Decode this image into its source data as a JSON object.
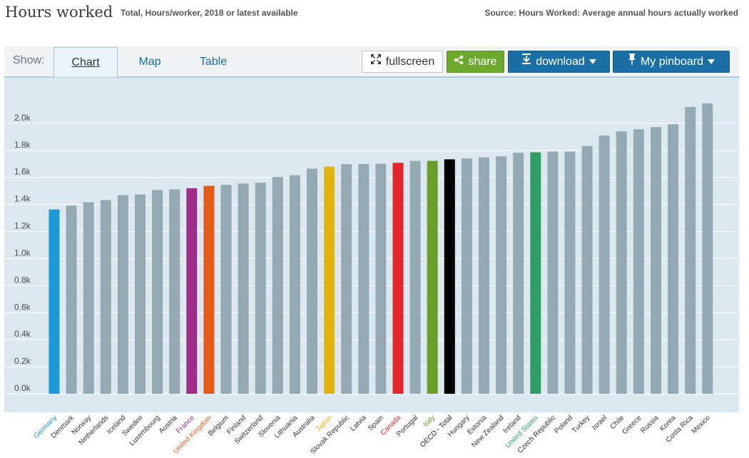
{
  "header": {
    "title": "Hours worked",
    "subtitle": "Total, Hours/worker, 2018 or latest available",
    "source": "Source: Hours Worked: Average annual hours actually worked"
  },
  "toolbar": {
    "show_label": "Show:",
    "tabs": [
      {
        "label": "Chart",
        "active": true
      },
      {
        "label": "Map",
        "active": false
      },
      {
        "label": "Table",
        "active": false
      }
    ],
    "fullscreen_label": "fullscreen",
    "share_label": "share",
    "download_label": "download",
    "pinboard_label": "My pinboard"
  },
  "colors": {
    "default_bar": "#95a9b5",
    "plot_background": "#dbe8ef",
    "accent_blue": "#1a6fa6",
    "share_green": "#6ea92f"
  },
  "icons": {
    "fullscreen": "expand-arrows-icon",
    "share": "share-icon",
    "download": "download-icon",
    "pinboard": "pin-icon",
    "dropdown": "caret-down-icon"
  },
  "chart_data": {
    "type": "bar",
    "ylim": [
      0,
      2200
    ],
    "yticks": [
      0,
      200,
      400,
      600,
      800,
      1000,
      1200,
      1400,
      1600,
      1800,
      2000
    ],
    "ytick_labels": [
      "0.0k",
      "0.2k",
      "0.4k",
      "0.6k",
      "0.8k",
      "1.0k",
      "1.2k",
      "1.4k",
      "1.6k",
      "1.8k",
      "2.0k"
    ],
    "grid": true,
    "categories": [
      "Germany",
      "Denmark",
      "Norway",
      "Netherlands",
      "Iceland",
      "Sweden",
      "Luxembourg",
      "Austria",
      "France",
      "United Kingdom",
      "Belgium",
      "Finland",
      "Switzerland",
      "Slovenia",
      "Lithuania",
      "Australia",
      "Japan",
      "Slovak Republic",
      "Latvia",
      "Spain",
      "Canada",
      "Portugal",
      "Italy",
      "OECD - Total",
      "Hungary",
      "Estonia",
      "New Zealand",
      "Ireland",
      "United States",
      "Czech Republic",
      "Poland",
      "Turkey",
      "Israel",
      "Chile",
      "Greece",
      "Russia",
      "Korea",
      "Costa Rica",
      "Mexico"
    ],
    "values": [
      1363,
      1392,
      1416,
      1433,
      1469,
      1474,
      1506,
      1511,
      1520,
      1538,
      1545,
      1555,
      1561,
      1603,
      1616,
      1665,
      1680,
      1698,
      1699,
      1701,
      1708,
      1722,
      1723,
      1734,
      1741,
      1748,
      1756,
      1782,
      1786,
      1792,
      1792,
      1832,
      1910,
      1941,
      1956,
      1972,
      1993,
      2121,
      2148
    ],
    "highlights": {
      "Germany": "#1f96d8",
      "France": "#9c2e87",
      "United Kingdom": "#e55a1c",
      "Japan": "#e2b20f",
      "Canada": "#e3262b",
      "Italy": "#6a9e2a",
      "OECD - Total": "#000000",
      "United States": "#2e9e66"
    }
  }
}
